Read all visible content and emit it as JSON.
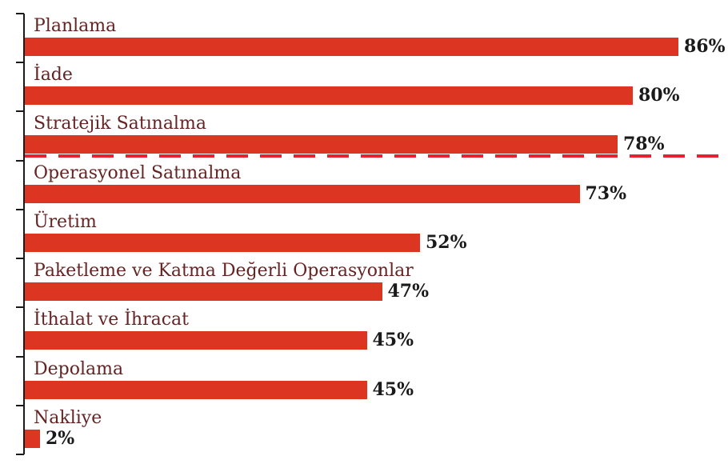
{
  "chart_data": {
    "type": "bar",
    "orientation": "horizontal",
    "title": "",
    "xlabel": "",
    "ylabel": "",
    "xlim": [
      0,
      100
    ],
    "grid": false,
    "legend": false,
    "categories": [
      "Planlama",
      "İade",
      "Stratejik Satınalma",
      "Operasyonel Satınalma",
      "Üretim",
      "Paketleme ve Katma Değerli Operasyonlar",
      "İthalat ve İhracat",
      "Depolama",
      "Nakliye"
    ],
    "values": [
      86,
      80,
      78,
      73,
      52,
      47,
      45,
      45,
      2
    ],
    "value_labels": [
      "86%",
      "80%",
      "78%",
      "73%",
      "52%",
      "47%",
      "45%",
      "45%",
      "2%"
    ],
    "separator_after_index": 2,
    "colors": {
      "bar": "#DC3522",
      "separator": "#E8212E",
      "category_label": "#662323",
      "value_label": "#1A1A1A",
      "axis": "#1A1A1A"
    }
  }
}
